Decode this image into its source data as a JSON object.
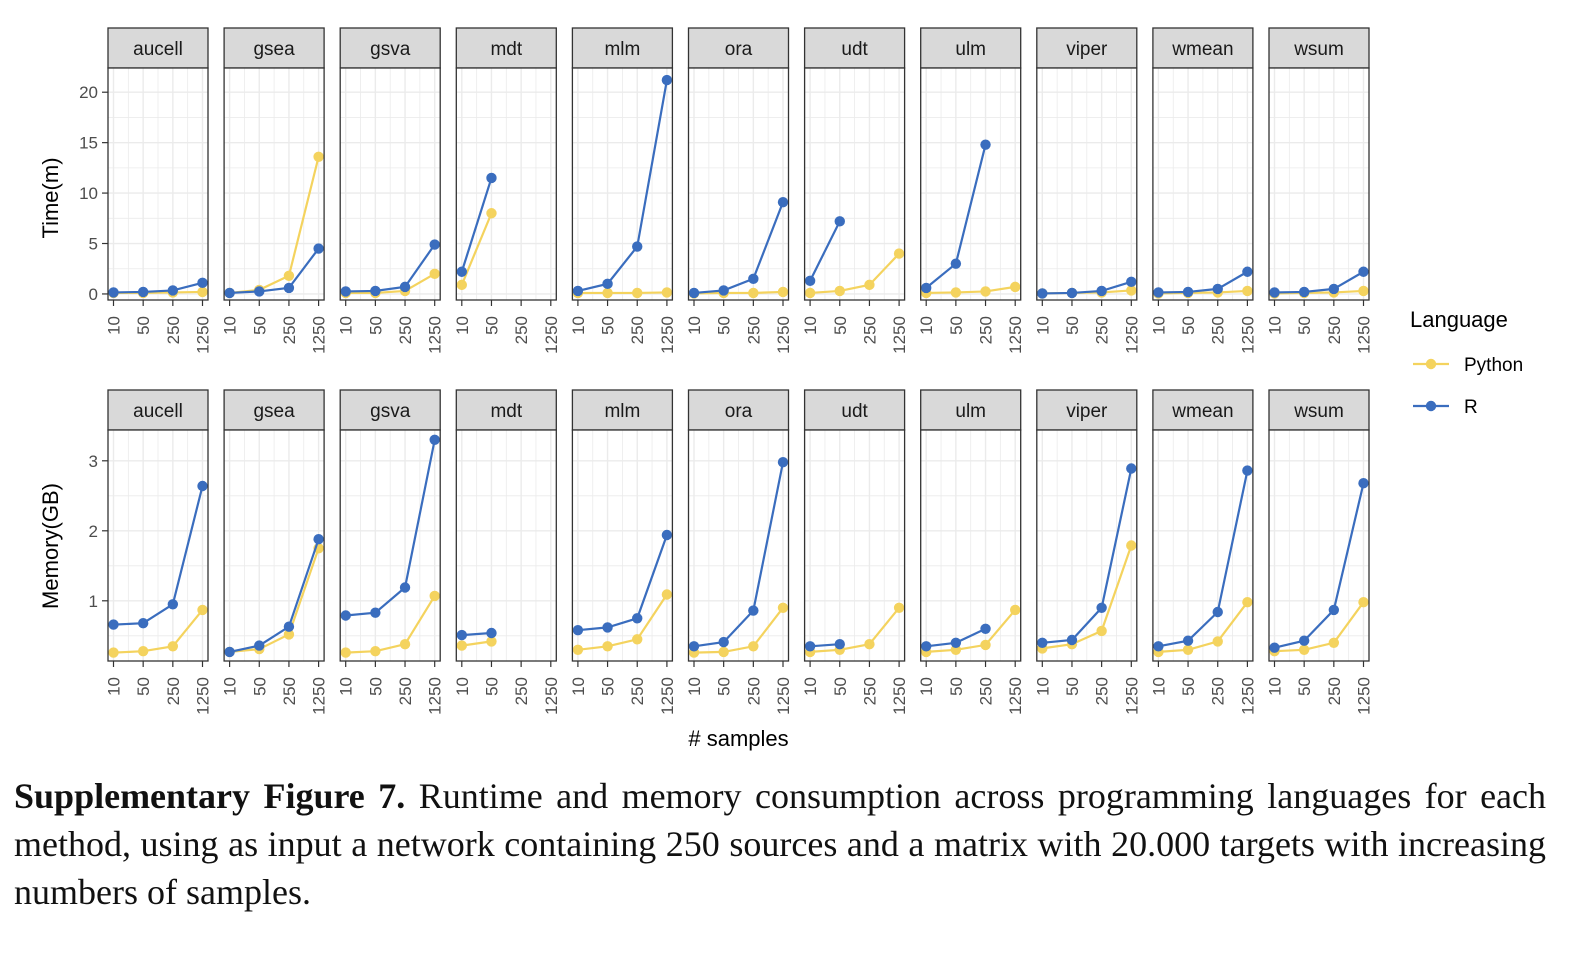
{
  "chart_data": {
    "type": "line",
    "x_label": "# samples",
    "x_ticks": [
      "10",
      "50",
      "250",
      "1250"
    ],
    "legend": {
      "title": "Language",
      "entries": [
        {
          "name": "Python",
          "color": "#F4D35E"
        },
        {
          "name": "R",
          "color": "#3A6DBE"
        }
      ],
      "placement": "right"
    },
    "grid": true,
    "panels": [
      "aucell",
      "gsea",
      "gsva",
      "mdt",
      "mlm",
      "ora",
      "udt",
      "ulm",
      "viper",
      "wmean",
      "wsum"
    ],
    "rows": [
      {
        "metric": "Time",
        "ylabel": "Time(m)",
        "ylim": [
          -0.6,
          22.4
        ],
        "yticks": [
          0,
          5,
          10,
          15,
          20
        ],
        "data": {
          "aucell": {
            "Python": [
              0.1,
              0.1,
              0.15,
              0.2
            ],
            "R": [
              0.15,
              0.2,
              0.35,
              1.1
            ]
          },
          "gsea": {
            "Python": [
              0.1,
              0.4,
              1.8,
              13.6
            ],
            "R": [
              0.1,
              0.25,
              0.6,
              4.5
            ]
          },
          "gsva": {
            "Python": [
              0.1,
              0.1,
              0.3,
              2.0
            ],
            "R": [
              0.25,
              0.3,
              0.7,
              4.9
            ]
          },
          "mdt": {
            "Python": [
              0.9,
              8.0,
              null,
              null
            ],
            "R": [
              2.2,
              11.5,
              null,
              null
            ]
          },
          "mlm": {
            "Python": [
              0.1,
              0.1,
              0.1,
              0.15
            ],
            "R": [
              0.3,
              1.0,
              4.7,
              21.2
            ]
          },
          "ora": {
            "Python": [
              0.05,
              0.1,
              0.1,
              0.2
            ],
            "R": [
              0.1,
              0.35,
              1.5,
              9.1
            ]
          },
          "udt": {
            "Python": [
              0.1,
              0.3,
              0.9,
              4.0
            ],
            "R": [
              1.3,
              7.2,
              null,
              null
            ]
          },
          "ulm": {
            "Python": [
              0.1,
              0.15,
              0.25,
              0.7
            ],
            "R": [
              0.6,
              3.0,
              14.8,
              null
            ]
          },
          "viper": {
            "Python": [
              0.05,
              0.1,
              0.15,
              0.35
            ],
            "R": [
              0.05,
              0.1,
              0.3,
              1.2
            ]
          },
          "wmean": {
            "Python": [
              0.05,
              0.1,
              0.15,
              0.3
            ],
            "R": [
              0.15,
              0.2,
              0.5,
              2.2
            ]
          },
          "wsum": {
            "Python": [
              0.05,
              0.1,
              0.15,
              0.3
            ],
            "R": [
              0.15,
              0.2,
              0.5,
              2.2
            ]
          }
        }
      },
      {
        "metric": "Memory",
        "ylabel": "Memory(GB)",
        "ylim": [
          0.14,
          3.44
        ],
        "yticks": [
          1,
          2,
          3
        ],
        "data": {
          "aucell": {
            "Python": [
              0.26,
              0.28,
              0.35,
              0.87
            ],
            "R": [
              0.66,
              0.68,
              0.95,
              2.64
            ]
          },
          "gsea": {
            "Python": [
              0.27,
              0.31,
              0.52,
              1.75
            ],
            "R": [
              0.27,
              0.36,
              0.63,
              1.88
            ]
          },
          "gsva": {
            "Python": [
              0.26,
              0.28,
              0.38,
              1.07
            ],
            "R": [
              0.79,
              0.83,
              1.19,
              3.3
            ]
          },
          "mdt": {
            "Python": [
              0.36,
              0.42,
              null,
              null
            ],
            "R": [
              0.51,
              0.54,
              null,
              null
            ]
          },
          "mlm": {
            "Python": [
              0.3,
              0.35,
              0.45,
              1.09
            ],
            "R": [
              0.58,
              0.62,
              0.75,
              1.94
            ]
          },
          "ora": {
            "Python": [
              0.26,
              0.27,
              0.35,
              0.9
            ],
            "R": [
              0.35,
              0.41,
              0.86,
              2.98
            ]
          },
          "udt": {
            "Python": [
              0.27,
              0.3,
              0.38,
              0.9
            ],
            "R": [
              0.35,
              0.38,
              null,
              null
            ]
          },
          "ulm": {
            "Python": [
              0.27,
              0.3,
              0.37,
              0.87
            ],
            "R": [
              0.35,
              0.4,
              0.6,
              null
            ]
          },
          "viper": {
            "Python": [
              0.32,
              0.38,
              0.57,
              1.79
            ],
            "R": [
              0.4,
              0.44,
              0.9,
              2.89
            ]
          },
          "wmean": {
            "Python": [
              0.27,
              0.3,
              0.42,
              0.98
            ],
            "R": [
              0.35,
              0.43,
              0.84,
              2.86
            ]
          },
          "wsum": {
            "Python": [
              0.28,
              0.3,
              0.4,
              0.98
            ],
            "R": [
              0.33,
              0.43,
              0.87,
              2.68
            ]
          }
        }
      }
    ]
  },
  "caption": {
    "label": "Supplementary Figure 7.",
    "text": "Runtime and memory consumption across programming languages for each method, using as input a network containing 250 sources and a matrix with 20.000 targets with increasing numbers of samples."
  }
}
